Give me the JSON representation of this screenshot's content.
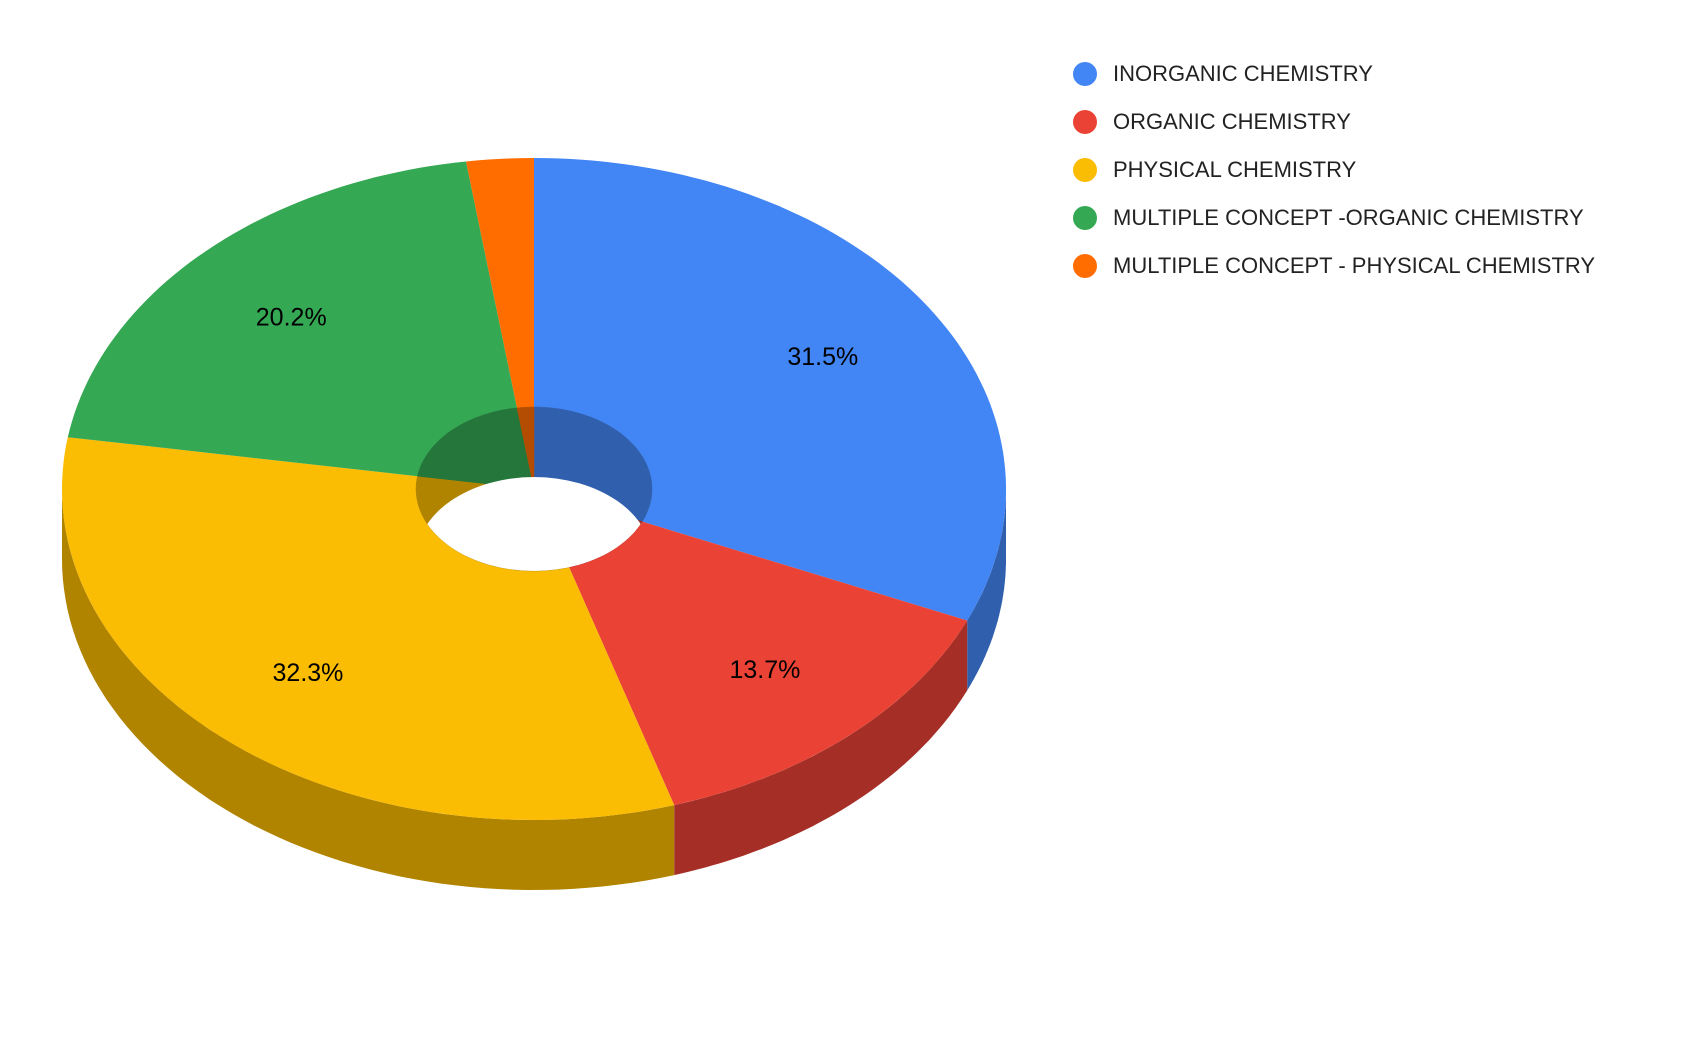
{
  "chart_data": {
    "type": "pie",
    "style": "3d-donut",
    "title": "",
    "legend_position": "right",
    "slices": [
      {
        "label": "INORGANIC CHEMISTRY",
        "value": 31.5,
        "display": "31.5%",
        "color": "#4285f4",
        "side_color": "#2f5fad"
      },
      {
        "label": "ORGANIC CHEMISTRY",
        "value": 13.7,
        "display": "13.7%",
        "color": "#ea4335",
        "side_color": "#a52f26"
      },
      {
        "label": "PHYSICAL CHEMISTRY",
        "value": 32.3,
        "display": "32.3%",
        "color": "#fbbc04",
        "side_color": "#b18400"
      },
      {
        "label": "MULTIPLE CONCEPT -ORGANIC CHEMISTRY",
        "value": 20.2,
        "display": "20.2%",
        "color": "#34a853",
        "side_color": "#24763b"
      },
      {
        "label": "MULTIPLE CONCEPT - PHYSICAL CHEMISTRY",
        "value": 2.3,
        "display": "",
        "color": "#ff6d01",
        "side_color": "#b44d01"
      }
    ]
  }
}
